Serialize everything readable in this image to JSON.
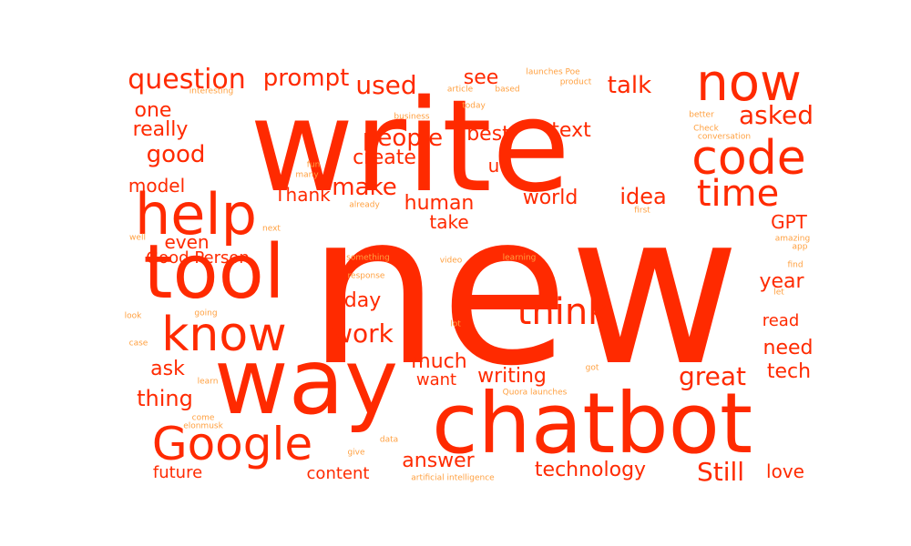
{
  "colors": {
    "background": "#ffffff",
    "primary": "#ff2a00",
    "secondary": "#ff7a10",
    "tertiary": "#ffa040"
  },
  "words": [
    {
      "id": "new",
      "text": "new",
      "c": "primary"
    },
    {
      "id": "write",
      "text": "write",
      "c": "primary"
    },
    {
      "id": "chatbot",
      "text": "chatbot",
      "c": "primary"
    },
    {
      "id": "way",
      "text": "way",
      "c": "primary"
    },
    {
      "id": "tool",
      "text": "tool",
      "c": "primary"
    },
    {
      "id": "help",
      "text": "help",
      "c": "primary"
    },
    {
      "id": "now",
      "text": "now",
      "c": "primary"
    },
    {
      "id": "code",
      "text": "code",
      "c": "primary"
    },
    {
      "id": "google",
      "text": "Google",
      "c": "primary"
    },
    {
      "id": "know",
      "text": "know",
      "c": "primary"
    },
    {
      "id": "time",
      "text": "time",
      "c": "primary"
    },
    {
      "id": "think",
      "text": "think",
      "c": "primary"
    },
    {
      "id": "question",
      "text": "question",
      "c": "primary"
    },
    {
      "id": "prompt",
      "text": "prompt",
      "c": "primary"
    },
    {
      "id": "used",
      "text": "used",
      "c": "primary"
    },
    {
      "id": "see",
      "text": "see",
      "c": "primary"
    },
    {
      "id": "talk",
      "text": "talk",
      "c": "primary"
    },
    {
      "id": "one",
      "text": "one",
      "c": "primary"
    },
    {
      "id": "really",
      "text": "really",
      "c": "primary"
    },
    {
      "id": "good",
      "text": "good",
      "c": "primary"
    },
    {
      "id": "people",
      "text": "people",
      "c": "primary"
    },
    {
      "id": "best",
      "text": "best",
      "c": "primary"
    },
    {
      "id": "text",
      "text": "text",
      "c": "primary"
    },
    {
      "id": "asked",
      "text": "asked",
      "c": "primary"
    },
    {
      "id": "create",
      "text": "create",
      "c": "primary"
    },
    {
      "id": "u",
      "text": "u",
      "c": "primary"
    },
    {
      "id": "model",
      "text": "model",
      "c": "primary"
    },
    {
      "id": "make",
      "text": "make",
      "c": "primary"
    },
    {
      "id": "thank",
      "text": "Thank",
      "c": "primary"
    },
    {
      "id": "human",
      "text": "human",
      "c": "primary"
    },
    {
      "id": "world",
      "text": "world",
      "c": "primary"
    },
    {
      "id": "idea",
      "text": "idea",
      "c": "primary"
    },
    {
      "id": "take",
      "text": "take",
      "c": "primary"
    },
    {
      "id": "gpt",
      "text": "GPT",
      "c": "primary"
    },
    {
      "id": "even",
      "text": "even",
      "c": "primary"
    },
    {
      "id": "goodperson",
      "text": "Good Person",
      "c": "primary"
    },
    {
      "id": "year",
      "text": "year",
      "c": "primary"
    },
    {
      "id": "day",
      "text": "day",
      "c": "primary"
    },
    {
      "id": "work",
      "text": "work",
      "c": "primary"
    },
    {
      "id": "read",
      "text": "read",
      "c": "primary"
    },
    {
      "id": "need",
      "text": "need",
      "c": "primary"
    },
    {
      "id": "much",
      "text": "much",
      "c": "primary"
    },
    {
      "id": "ask",
      "text": "ask",
      "c": "primary"
    },
    {
      "id": "want",
      "text": "want",
      "c": "primary"
    },
    {
      "id": "writing",
      "text": "writing",
      "c": "primary"
    },
    {
      "id": "great",
      "text": "great",
      "c": "primary"
    },
    {
      "id": "tech",
      "text": "tech",
      "c": "primary"
    },
    {
      "id": "thing",
      "text": "thing",
      "c": "primary"
    },
    {
      "id": "answer",
      "text": "answer",
      "c": "primary"
    },
    {
      "id": "technology",
      "text": "technology",
      "c": "primary"
    },
    {
      "id": "still",
      "text": "Still",
      "c": "primary"
    },
    {
      "id": "love",
      "text": "love",
      "c": "primary"
    },
    {
      "id": "future",
      "text": "future",
      "c": "primary"
    },
    {
      "id": "content",
      "text": "content",
      "c": "primary"
    },
    {
      "id": "launchespoe",
      "text": "launches Poe",
      "c": "tertiary"
    },
    {
      "id": "interesting",
      "text": "interesting",
      "c": "tertiary"
    },
    {
      "id": "article",
      "text": "article",
      "c": "tertiary"
    },
    {
      "id": "based",
      "text": "based",
      "c": "tertiary"
    },
    {
      "id": "product",
      "text": "product",
      "c": "tertiary"
    },
    {
      "id": "today",
      "text": "today",
      "c": "tertiary"
    },
    {
      "id": "business",
      "text": "business",
      "c": "tertiary"
    },
    {
      "id": "better",
      "text": "better",
      "c": "tertiary"
    },
    {
      "id": "check",
      "text": "Check",
      "c": "tertiary"
    },
    {
      "id": "conversation",
      "text": "conversation",
      "c": "tertiary"
    },
    {
      "id": "fun",
      "text": "fun",
      "c": "tertiary"
    },
    {
      "id": "many",
      "text": "many",
      "c": "tertiary"
    },
    {
      "id": "already",
      "text": "already",
      "c": "tertiary"
    },
    {
      "id": "first",
      "text": "first",
      "c": "tertiary"
    },
    {
      "id": "next",
      "text": "next",
      "c": "tertiary"
    },
    {
      "id": "well",
      "text": "well",
      "c": "tertiary"
    },
    {
      "id": "amazing",
      "text": "amazing",
      "c": "tertiary"
    },
    {
      "id": "app",
      "text": "app",
      "c": "tertiary"
    },
    {
      "id": "something",
      "text": "something",
      "c": "tertiary"
    },
    {
      "id": "learning",
      "text": "learning",
      "c": "tertiary"
    },
    {
      "id": "video",
      "text": "video",
      "c": "tertiary"
    },
    {
      "id": "response",
      "text": "response",
      "c": "tertiary"
    },
    {
      "id": "find",
      "text": "find",
      "c": "tertiary"
    },
    {
      "id": "let",
      "text": "let",
      "c": "tertiary"
    },
    {
      "id": "going",
      "text": "going",
      "c": "tertiary"
    },
    {
      "id": "look",
      "text": "look",
      "c": "tertiary"
    },
    {
      "id": "lot",
      "text": "lot",
      "c": "tertiary"
    },
    {
      "id": "case",
      "text": "case",
      "c": "tertiary"
    },
    {
      "id": "learn",
      "text": "learn",
      "c": "tertiary"
    },
    {
      "id": "got",
      "text": "got",
      "c": "tertiary"
    },
    {
      "id": "quoralaunches",
      "text": "Quora launches",
      "c": "tertiary"
    },
    {
      "id": "come",
      "text": "come",
      "c": "tertiary"
    },
    {
      "id": "elonmusk",
      "text": "elonmusk",
      "c": "tertiary"
    },
    {
      "id": "data",
      "text": "data",
      "c": "tertiary"
    },
    {
      "id": "give",
      "text": "give",
      "c": "tertiary"
    },
    {
      "id": "ai",
      "text": "artificial intelligence",
      "c": "tertiary"
    }
  ]
}
